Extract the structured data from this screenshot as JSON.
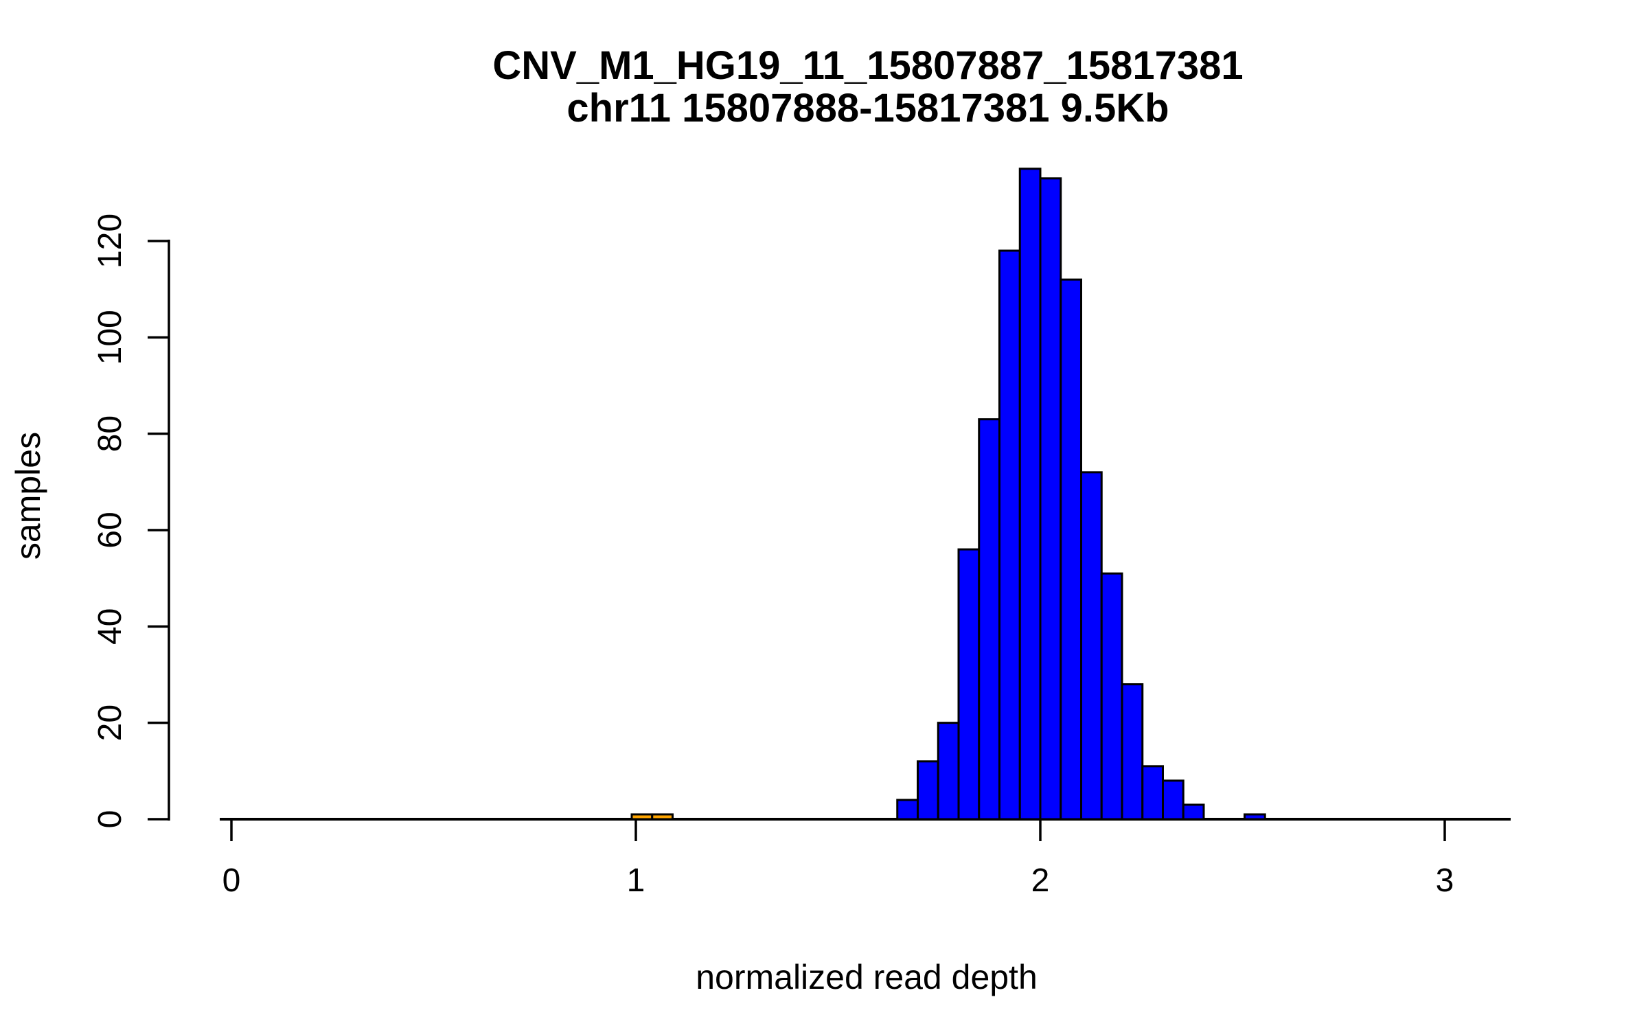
{
  "chart_data": {
    "type": "bar",
    "subtype": "histogram",
    "title": "CNV_M1_HG19_11_15807887_15817381",
    "subtitle": "chr11 15807888-15817381 9.5Kb",
    "xlabel": "normalized read depth",
    "ylabel": "samples",
    "x_ticks": [
      "0",
      "1",
      "2",
      "3"
    ],
    "x_tick_values": [
      0,
      1,
      2,
      3
    ],
    "y_ticks": [
      "0",
      "20",
      "40",
      "60",
      "80",
      "100",
      "120"
    ],
    "y_tick_values": [
      0,
      20,
      40,
      60,
      80,
      100,
      120
    ],
    "xlim": [
      -0.03,
      3.16
    ],
    "ylim": [
      0,
      135
    ],
    "grid": false,
    "legend": "none",
    "bin_width": 0.05,
    "colors": {
      "bar_fill": "#0000ff",
      "bar_outlier_fill": "#ffa500",
      "bar_stroke": "#000000",
      "axis": "#000000",
      "text": "#000000",
      "background": "#ffffff"
    },
    "bins": [
      {
        "x0": 1.0,
        "x1": 1.05,
        "count": 1,
        "color": "#ffa500"
      },
      {
        "x0": 1.05,
        "x1": 1.1,
        "count": 1,
        "color": "#ffa500"
      },
      {
        "x0": 1.65,
        "x1": 1.7,
        "count": 4
      },
      {
        "x0": 1.7,
        "x1": 1.75,
        "count": 12
      },
      {
        "x0": 1.75,
        "x1": 1.8,
        "count": 20
      },
      {
        "x0": 1.8,
        "x1": 1.85,
        "count": 56
      },
      {
        "x0": 1.85,
        "x1": 1.9,
        "count": 83
      },
      {
        "x0": 1.9,
        "x1": 1.95,
        "count": 118
      },
      {
        "x0": 1.95,
        "x1": 2.0,
        "count": 135
      },
      {
        "x0": 2.0,
        "x1": 2.05,
        "count": 133
      },
      {
        "x0": 2.05,
        "x1": 2.1,
        "count": 112
      },
      {
        "x0": 2.1,
        "x1": 2.15,
        "count": 72
      },
      {
        "x0": 2.15,
        "x1": 2.2,
        "count": 51
      },
      {
        "x0": 2.2,
        "x1": 2.25,
        "count": 28
      },
      {
        "x0": 2.25,
        "x1": 2.3,
        "count": 11
      },
      {
        "x0": 2.3,
        "x1": 2.35,
        "count": 8
      },
      {
        "x0": 2.35,
        "x1": 2.4,
        "count": 3
      },
      {
        "x0": 2.5,
        "x1": 2.55,
        "count": 1
      }
    ]
  }
}
